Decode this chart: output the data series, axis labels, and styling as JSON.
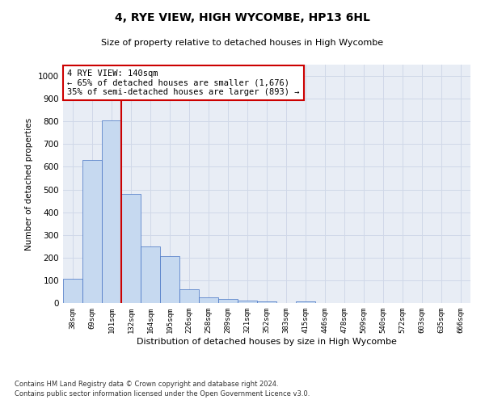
{
  "title": "4, RYE VIEW, HIGH WYCOMBE, HP13 6HL",
  "subtitle": "Size of property relative to detached houses in High Wycombe",
  "xlabel": "Distribution of detached houses by size in High Wycombe",
  "ylabel": "Number of detached properties",
  "bar_labels": [
    "38sqm",
    "69sqm",
    "101sqm",
    "132sqm",
    "164sqm",
    "195sqm",
    "226sqm",
    "258sqm",
    "289sqm",
    "321sqm",
    "352sqm",
    "383sqm",
    "415sqm",
    "446sqm",
    "478sqm",
    "509sqm",
    "540sqm",
    "572sqm",
    "603sqm",
    "635sqm",
    "666sqm"
  ],
  "bar_values": [
    108,
    630,
    805,
    480,
    248,
    205,
    62,
    25,
    17,
    12,
    6,
    0,
    8,
    0,
    0,
    0,
    0,
    0,
    0,
    0,
    0
  ],
  "bar_color": "#c6d9f0",
  "bar_edgecolor": "#4472c4",
  "vline_color": "#cc0000",
  "vline_x_index": 2.5,
  "annotation_text": "4 RYE VIEW: 140sqm\n← 65% of detached houses are smaller (1,676)\n35% of semi-detached houses are larger (893) →",
  "annotation_box_color": "#ffffff",
  "annotation_box_edgecolor": "#cc0000",
  "ylim": [
    0,
    1050
  ],
  "yticks": [
    0,
    100,
    200,
    300,
    400,
    500,
    600,
    700,
    800,
    900,
    1000
  ],
  "grid_color": "#d0d8e8",
  "background_color": "#e8edf5",
  "footnote1": "Contains HM Land Registry data © Crown copyright and database right 2024.",
  "footnote2": "Contains public sector information licensed under the Open Government Licence v3.0."
}
